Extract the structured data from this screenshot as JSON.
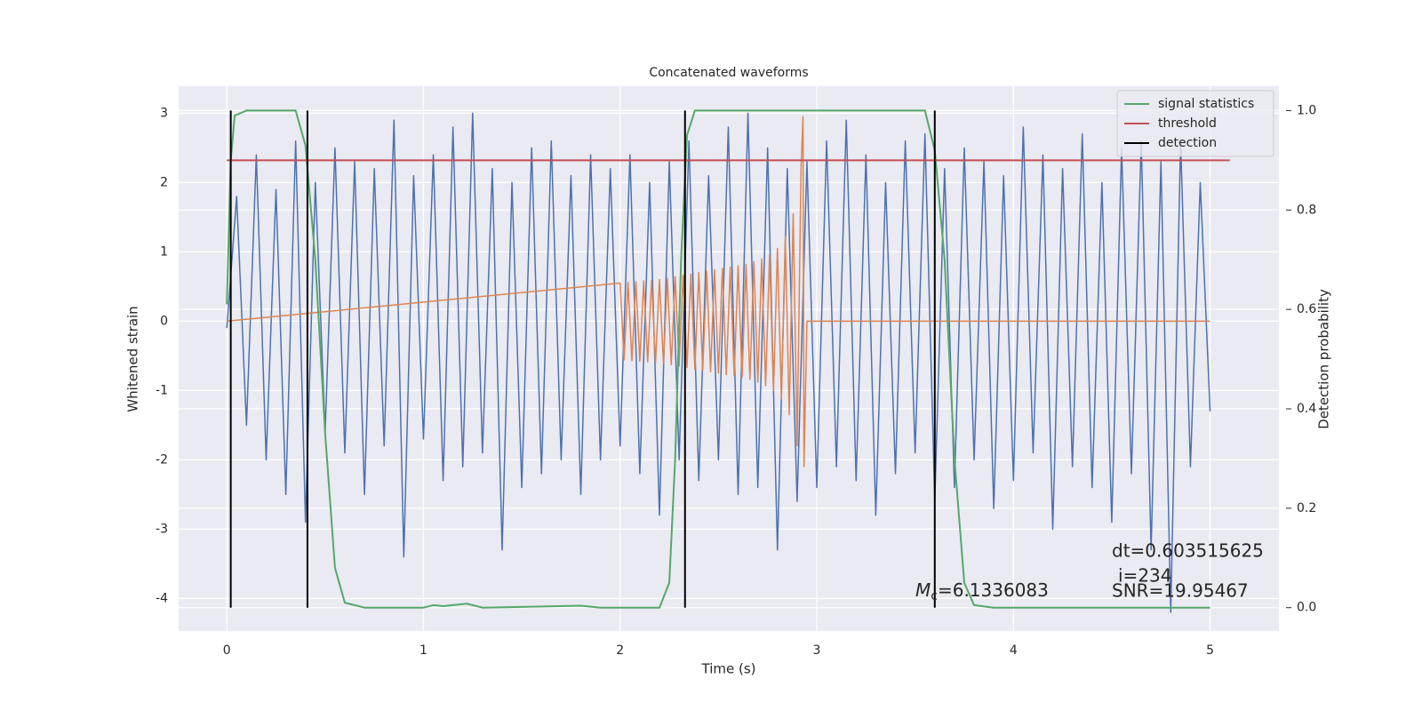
{
  "chart_data": {
    "type": "line",
    "title": "Concatenated waveforms",
    "x_label": "Time (s)",
    "y_label": "Whitened strain",
    "y2_label": "Detection probability",
    "xlim": [
      -0.245,
      5.35
    ],
    "xticks": [
      0,
      1,
      2,
      3,
      4,
      5
    ],
    "ylim": [
      -4.47,
      3.39
    ],
    "yticks": [
      -4,
      -3,
      -2,
      -1,
      0,
      1,
      2,
      3
    ],
    "y2lim": [
      -0.047,
      1.049
    ],
    "y2ticks": [
      {
        "value": 0,
        "label": "0.0"
      },
      {
        "value": 0.2,
        "label": "0.2"
      },
      {
        "value": 0.4,
        "label": "0.4"
      },
      {
        "value": 0.6,
        "label": "0.6"
      },
      {
        "value": 0.8,
        "label": "0.8"
      },
      {
        "value": 1,
        "label": "1.0"
      }
    ],
    "grid": true,
    "legend": "upper right",
    "series": [
      {
        "color": "#4c72b0",
        "x": [
          0,
          0.05,
          0.1,
          0.15,
          0.2,
          0.25,
          0.3,
          0.35,
          0.4,
          0.45,
          0.5,
          0.55,
          0.6,
          0.65,
          0.7,
          0.75,
          0.8,
          0.85,
          0.9,
          0.95,
          1,
          1.05,
          1.1,
          1.15,
          1.2,
          1.25,
          1.3,
          1.35,
          1.4,
          1.45,
          1.5,
          1.55,
          1.6,
          1.65,
          1.7,
          1.75,
          1.8,
          1.85,
          1.9,
          1.95,
          2,
          2.05,
          2.1,
          2.15,
          2.2,
          2.25,
          2.3,
          2.35,
          2.4,
          2.45,
          2.5,
          2.55,
          2.6,
          2.65,
          2.7,
          2.75,
          2.8,
          2.85,
          2.9,
          2.95,
          3,
          3.05,
          3.1,
          3.15,
          3.2,
          3.25,
          3.3,
          3.35,
          3.4,
          3.45,
          3.5,
          3.55,
          3.6,
          3.65,
          3.7,
          3.75,
          3.8,
          3.85,
          3.9,
          3.95,
          4,
          4.05,
          4.1,
          4.15,
          4.2,
          4.25,
          4.3,
          4.35,
          4.4,
          4.45,
          4.5,
          4.55,
          4.6,
          4.65,
          4.7,
          4.75,
          4.8,
          4.85,
          4.9,
          4.95,
          5
        ],
        "values": [
          -0.1,
          1.8,
          -1.5,
          2.4,
          -2.0,
          1.9,
          -2.5,
          2.6,
          -2.9,
          2.0,
          -1.6,
          2.5,
          -1.9,
          2.3,
          -2.5,
          2.2,
          -1.8,
          2.9,
          -3.4,
          2.1,
          -1.7,
          2.4,
          -2.3,
          2.8,
          -2.1,
          3.0,
          -1.9,
          2.2,
          -3.3,
          2.0,
          -2.4,
          2.5,
          -2.2,
          2.6,
          -2.0,
          2.1,
          -2.5,
          2.4,
          -2.0,
          2.2,
          -1.8,
          2.4,
          -2.2,
          2.0,
          -2.8,
          2.3,
          -2.0,
          2.6,
          -2.3,
          2.1,
          -2.0,
          2.8,
          -2.5,
          3.0,
          -2.4,
          2.5,
          -3.3,
          2.2,
          -2.6,
          2.3,
          -2.4,
          2.6,
          -2.1,
          2.9,
          -2.3,
          2.4,
          -2.8,
          2.0,
          -2.2,
          2.6,
          -1.9,
          2.7,
          -2.6,
          2.2,
          -2.4,
          2.5,
          -2.0,
          2.3,
          -2.7,
          2.1,
          -2.3,
          2.8,
          -1.9,
          2.4,
          -3.0,
          2.2,
          -2.1,
          2.7,
          -2.4,
          2.0,
          -2.9,
          2.5,
          -2.2,
          2.6,
          -3.3,
          2.3,
          -4.2,
          2.6,
          -2.1,
          2.0,
          -1.3
        ]
      },
      {
        "color": "#dd8452",
        "x": [
          0,
          2.0,
          2.02,
          2.04,
          2.06,
          2.08,
          2.1,
          2.12,
          2.14,
          2.16,
          2.18,
          2.2,
          2.22,
          2.24,
          2.26,
          2.28,
          2.3,
          2.32,
          2.34,
          2.36,
          2.38,
          2.4,
          2.42,
          2.44,
          2.46,
          2.48,
          2.5,
          2.52,
          2.54,
          2.56,
          2.58,
          2.6,
          2.62,
          2.64,
          2.66,
          2.68,
          2.7,
          2.72,
          2.74,
          2.76,
          2.78,
          2.8,
          2.82,
          2.84,
          2.86,
          2.88,
          2.9,
          2.92,
          2.93,
          2.935,
          2.95,
          5.0
        ],
        "values": [
          0,
          0.55,
          -0.56,
          0.56,
          -0.57,
          0.57,
          -0.58,
          0.58,
          -0.59,
          0.59,
          -0.6,
          0.6,
          -0.61,
          0.62,
          -0.63,
          0.64,
          -0.65,
          0.66,
          -0.67,
          0.68,
          -0.69,
          0.7,
          -0.71,
          0.72,
          -0.73,
          0.74,
          -0.75,
          0.76,
          -0.77,
          0.78,
          -0.79,
          0.8,
          -0.81,
          0.82,
          -0.84,
          0.86,
          -0.88,
          0.9,
          -0.93,
          0.96,
          -1.0,
          1.05,
          -1.12,
          1.22,
          -1.35,
          1.55,
          -1.8,
          2.2,
          2.95,
          -2.1,
          0,
          0
        ]
      },
      {
        "name": "signal statistics",
        "color": "#55a868",
        "axis": "y2",
        "x": [
          0,
          0.02,
          0.04,
          0.1,
          0.35,
          0.4,
          0.45,
          0.5,
          0.55,
          0.6,
          0.7,
          1.0,
          1.05,
          1.1,
          1.22,
          1.3,
          1.8,
          1.9,
          2.2,
          2.25,
          2.28,
          2.31,
          2.34,
          2.38,
          3.55,
          3.6,
          3.65,
          3.7,
          3.75,
          3.8,
          3.9,
          5.0
        ],
        "values": [
          0.61,
          0.9,
          0.99,
          1.0,
          1.0,
          0.93,
          0.7,
          0.35,
          0.08,
          0.01,
          0,
          0,
          0.005,
          0.003,
          0.008,
          0,
          0.004,
          0,
          0,
          0.05,
          0.3,
          0.7,
          0.95,
          1.0,
          1.0,
          0.92,
          0.7,
          0.3,
          0.05,
          0.005,
          0,
          0
        ]
      },
      {
        "name": "threshold",
        "color": "#c44e52",
        "axis": "y2",
        "x": [
          0,
          5.1
        ],
        "values": [
          0.9,
          0.9
        ]
      },
      {
        "name": "detection",
        "color": "#000000",
        "axis": "y2",
        "kind": "vlines",
        "x": [
          0.02,
          0.41,
          2.33,
          3.6
        ],
        "values": [
          1,
          1,
          1,
          1
        ]
      }
    ],
    "annotations": [
      {
        "text": "dt=0.603515625"
      },
      {
        "text": "i=234"
      },
      {
        "text": "SNR=19.95467"
      },
      {
        "symbol": "M",
        "subscript": "c",
        "text": "=6.1336083"
      }
    ]
  }
}
